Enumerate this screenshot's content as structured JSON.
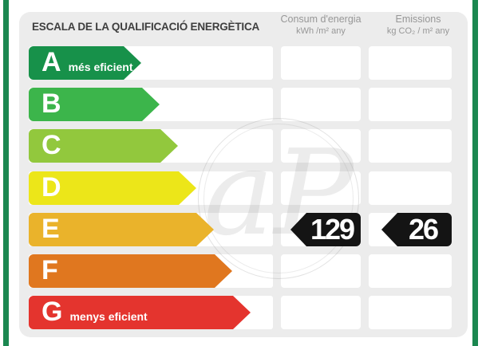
{
  "chart_data": {
    "type": "bar",
    "title": "ESCALA DE LA QUALIFICACIÓ ENERGÈTICA",
    "categories": [
      "A",
      "B",
      "C",
      "D",
      "E",
      "F",
      "G"
    ],
    "category_notes": {
      "A": "més eficient",
      "G": "menys eficient"
    },
    "assigned_rating": "E",
    "series": [
      {
        "name": "Consum d'energia",
        "unit": "kWh /m² any",
        "value": 129,
        "rating": "E"
      },
      {
        "name": "Emissions",
        "unit": "kg CO₂ / m² any",
        "value": 26,
        "rating": "E"
      }
    ],
    "legend_position": "none",
    "orientation": "horizontal"
  },
  "header": {
    "title": "ESCALA DE LA QUALIFICACIÓ ENERGÈTICA",
    "columns": [
      {
        "name": "Consum d'energia",
        "unit": "kWh /m² any"
      },
      {
        "name": "Emissions",
        "unit": "kg CO₂ / m² any"
      }
    ]
  },
  "scale": {
    "ratings": [
      {
        "letter": "A",
        "note": "més eficient",
        "color": "#17914a",
        "arrow_width": 141
      },
      {
        "letter": "B",
        "note": "",
        "color": "#3cb54b",
        "arrow_width": 164
      },
      {
        "letter": "C",
        "note": "",
        "color": "#92c83d",
        "arrow_width": 187
      },
      {
        "letter": "D",
        "note": "",
        "color": "#ece619",
        "arrow_width": 210
      },
      {
        "letter": "E",
        "note": "",
        "color": "#eab32b",
        "arrow_width": 232
      },
      {
        "letter": "F",
        "note": "",
        "color": "#e0771f",
        "arrow_width": 255
      },
      {
        "letter": "G",
        "note": "menys eficient",
        "color": "#e4342e",
        "arrow_width": 278
      }
    ]
  },
  "result": {
    "rating_letter": "E",
    "consum_value": "129",
    "emissions_value": "26",
    "badge_color": "#141414",
    "value_text_color": "#ffffff"
  },
  "watermark": {
    "text": "aP"
  },
  "theme": {
    "frame_green": "#1b8750",
    "panel_bg": "#ececec",
    "cell_bg": "#ffffff",
    "title_color": "#3e3e3e",
    "column_header_color": "#979797"
  }
}
